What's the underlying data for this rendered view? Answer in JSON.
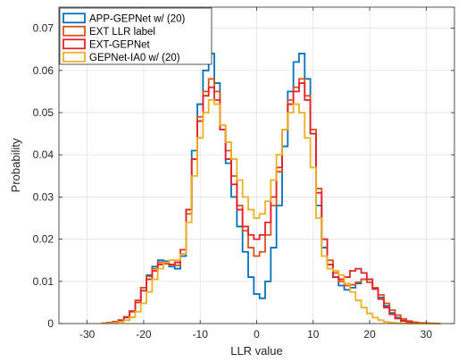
{
  "chart_data": {
    "type": "line",
    "title": "",
    "xlabel": "LLR value",
    "ylabel": "Probability",
    "xlim": [
      -35,
      35
    ],
    "ylim": [
      0,
      0.075
    ],
    "xticks": [
      -30,
      -20,
      -10,
      0,
      10,
      20,
      30
    ],
    "xtick_labels": [
      "-30",
      "-20",
      "-10",
      "0",
      "10",
      "20",
      "30"
    ],
    "yticks": [
      0,
      0.01,
      0.02,
      0.03,
      0.04,
      0.05,
      0.06,
      0.07
    ],
    "ytick_labels": [
      "0",
      "0.01",
      "0.02",
      "0.03",
      "0.04",
      "0.05",
      "0.06",
      "0.07"
    ],
    "grid": true,
    "legend_position": "top-left",
    "step": true,
    "series": [
      {
        "name": "APP-GEPNet w/ (20)",
        "color": "#0072BD",
        "x": [
          -27,
          -26,
          -25,
          -24,
          -23,
          -22,
          -21,
          -20,
          -19,
          -18,
          -17,
          -16,
          -15,
          -14,
          -13,
          -12,
          -11,
          -10,
          -9,
          -8,
          -7,
          -6,
          -5,
          -4,
          -3,
          -2,
          -1,
          0,
          1,
          2,
          3,
          4,
          5,
          6,
          7,
          8,
          9,
          10,
          11,
          12,
          13,
          14,
          15,
          16,
          17,
          18,
          19,
          20,
          21,
          22,
          23,
          24,
          25,
          26,
          27,
          28,
          29,
          30,
          31,
          32
        ],
        "y": [
          0.0001,
          0.0002,
          0.0004,
          0.0008,
          0.0015,
          0.003,
          0.0055,
          0.0085,
          0.0115,
          0.0135,
          0.015,
          0.0148,
          0.0135,
          0.013,
          0.016,
          0.027,
          0.041,
          0.052,
          0.06,
          0.064,
          0.057,
          0.046,
          0.038,
          0.03,
          0.023,
          0.017,
          0.011,
          0.007,
          0.006,
          0.01,
          0.018,
          0.028,
          0.042,
          0.055,
          0.062,
          0.064,
          0.058,
          0.045,
          0.028,
          0.018,
          0.014,
          0.011,
          0.009,
          0.008,
          0.0085,
          0.0095,
          0.0105,
          0.0098,
          0.0082,
          0.0062,
          0.0042,
          0.0025,
          0.0014,
          0.0007,
          0.0004,
          0.0002,
          0.0001,
          0.0001,
          5e-05,
          0
        ]
      },
      {
        "name": "EXT LLR label",
        "color": "#D95319",
        "x": [
          -27,
          -26,
          -25,
          -24,
          -23,
          -22,
          -21,
          -20,
          -19,
          -18,
          -17,
          -16,
          -15,
          -14,
          -13,
          -12,
          -11,
          -10,
          -9,
          -8,
          -7,
          -6,
          -5,
          -4,
          -3,
          -2,
          -1,
          0,
          1,
          2,
          3,
          4,
          5,
          6,
          7,
          8,
          9,
          10,
          11,
          12,
          13,
          14,
          15,
          16,
          17,
          18,
          19,
          20,
          21,
          22,
          23,
          24,
          25,
          26,
          27,
          28,
          29,
          30,
          31,
          32
        ],
        "y": [
          0.0001,
          0.0002,
          0.0004,
          0.0008,
          0.0016,
          0.003,
          0.0055,
          0.0085,
          0.0112,
          0.013,
          0.0145,
          0.0145,
          0.014,
          0.0138,
          0.0165,
          0.026,
          0.039,
          0.049,
          0.055,
          0.058,
          0.055,
          0.047,
          0.041,
          0.035,
          0.028,
          0.022,
          0.018,
          0.016,
          0.017,
          0.021,
          0.028,
          0.036,
          0.046,
          0.053,
          0.056,
          0.058,
          0.054,
          0.046,
          0.032,
          0.02,
          0.015,
          0.012,
          0.01,
          0.009,
          0.0092,
          0.0098,
          0.0105,
          0.0098,
          0.0085,
          0.0068,
          0.0048,
          0.0032,
          0.002,
          0.0011,
          0.0006,
          0.0003,
          0.00015,
          0.0001,
          5e-05,
          0
        ]
      },
      {
        "name": "EXT-GEPNet",
        "color": "#E8202A",
        "x": [
          -27,
          -26,
          -25,
          -24,
          -23,
          -22,
          -21,
          -20,
          -19,
          -18,
          -17,
          -16,
          -15,
          -14,
          -13,
          -12,
          -11,
          -10,
          -9,
          -8,
          -7,
          -6,
          -5,
          -4,
          -3,
          -2,
          -1,
          0,
          1,
          2,
          3,
          4,
          5,
          6,
          7,
          8,
          9,
          10,
          11,
          12,
          13,
          14,
          15,
          16,
          17,
          18,
          19,
          20,
          21,
          22,
          23,
          24,
          25,
          26,
          27,
          28,
          29,
          30,
          31,
          32
        ],
        "y": [
          0.0001,
          0.0002,
          0.0004,
          0.0008,
          0.0015,
          0.0028,
          0.005,
          0.0078,
          0.0105,
          0.0125,
          0.014,
          0.0142,
          0.014,
          0.0145,
          0.0175,
          0.027,
          0.039,
          0.048,
          0.054,
          0.056,
          0.053,
          0.046,
          0.039,
          0.033,
          0.027,
          0.023,
          0.021,
          0.02,
          0.021,
          0.024,
          0.03,
          0.037,
          0.046,
          0.052,
          0.055,
          0.057,
          0.053,
          0.045,
          0.031,
          0.02,
          0.014,
          0.011,
          0.0105,
          0.011,
          0.0125,
          0.013,
          0.012,
          0.0105,
          0.0082,
          0.0058,
          0.0038,
          0.0022,
          0.0012,
          0.0006,
          0.0003,
          0.00015,
          0.0001,
          5e-05,
          0,
          0
        ]
      },
      {
        "name": "GEPNet-IA0 w/ (20)",
        "color": "#EDB120",
        "x": [
          -27,
          -26,
          -25,
          -24,
          -23,
          -22,
          -21,
          -20,
          -19,
          -18,
          -17,
          -16,
          -15,
          -14,
          -13,
          -12,
          -11,
          -10,
          -9,
          -8,
          -7,
          -6,
          -5,
          -4,
          -3,
          -2,
          -1,
          0,
          1,
          2,
          3,
          4,
          5,
          6,
          7,
          8,
          9,
          10,
          11,
          12,
          13,
          14,
          15,
          16,
          17,
          18,
          19,
          20,
          21,
          22,
          23,
          24,
          25,
          26,
          27,
          28,
          29,
          30,
          31,
          32
        ],
        "y": [
          0.0001,
          0.0001,
          0.0002,
          0.0004,
          0.0008,
          0.0015,
          0.0028,
          0.0048,
          0.0075,
          0.0105,
          0.013,
          0.0145,
          0.015,
          0.015,
          0.0165,
          0.024,
          0.035,
          0.044,
          0.05,
          0.053,
          0.052,
          0.047,
          0.043,
          0.039,
          0.034,
          0.03,
          0.027,
          0.025,
          0.026,
          0.029,
          0.034,
          0.04,
          0.046,
          0.05,
          0.052,
          0.05,
          0.044,
          0.037,
          0.025,
          0.016,
          0.013,
          0.0125,
          0.0115,
          0.0095,
          0.0075,
          0.0055,
          0.0038,
          0.0024,
          0.0014,
          0.0008,
          0.0004,
          0.0002,
          0.0001,
          5e-05,
          0,
          0,
          0,
          0,
          0,
          0
        ]
      }
    ]
  }
}
